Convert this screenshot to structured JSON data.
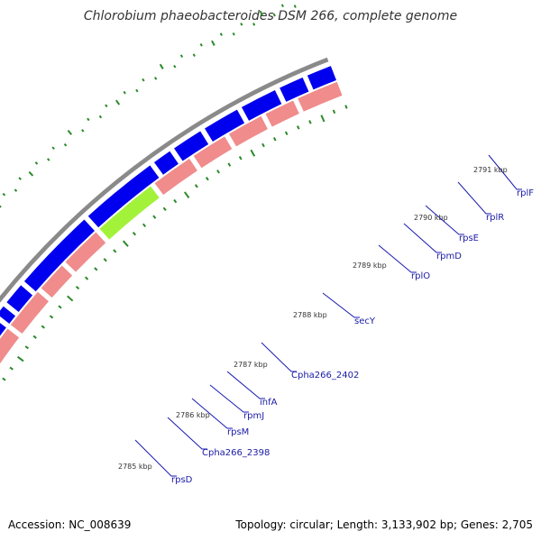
{
  "title": "Chlorobium phaeobacteroides DSM 266, complete genome",
  "footer": {
    "accession": "Accession: NC_008639",
    "summary": "Topology: circular; Length: 3,133,902 bp; Genes: 2,705"
  },
  "colors": {
    "forward_gene": "#0000ee",
    "reverse_gene": "#f08c8c",
    "highlight_green": "#a3f23a",
    "highlight_orange": "#ff8c00",
    "backbone": "#8a8a8a",
    "tick": "#2a8a2a",
    "label_line": "#1a1ab0"
  },
  "kbp_labels": [
    "2785 kbp",
    "2786 kbp",
    "2787 kbp",
    "2788 kbp",
    "2789 kbp",
    "2790 kbp",
    "2791 kbp"
  ],
  "genes": [
    "rpsD",
    "Cpha266_2398",
    "rpsM",
    "rpmJ",
    "infA",
    "Cpha266_2402",
    "secY",
    "rplO",
    "rpmD",
    "rpsE",
    "rplR",
    "rplF"
  ]
}
